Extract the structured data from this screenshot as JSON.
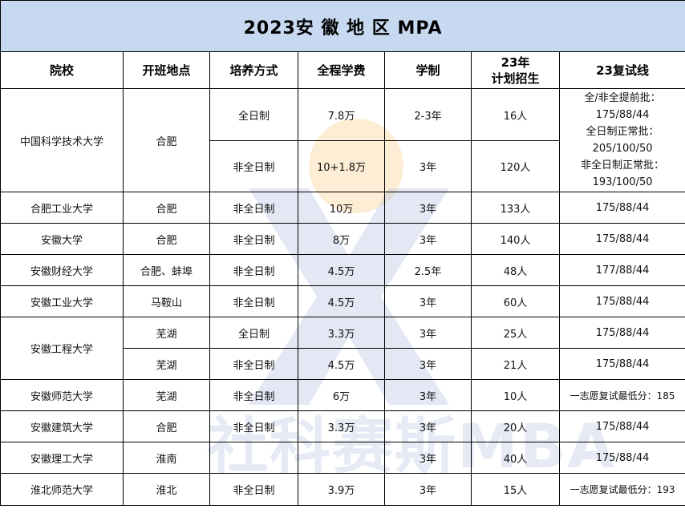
{
  "title": "2023安 徽 地 区 MPA",
  "headers": {
    "school": "院校",
    "location": "开班地点",
    "mode": "培养方式",
    "tuition": "全程学费",
    "duration": "学制",
    "plan_line1": "23年",
    "plan_line2": "计划招生",
    "score": "23复试线"
  },
  "ustc": {
    "school": "中国科学技术大学",
    "location": "合肥",
    "rows": [
      {
        "mode": "全日制",
        "tuition": "7.8万",
        "duration": "2-3年",
        "plan": "16人"
      },
      {
        "mode": "非全日制",
        "tuition": "10+1.8万",
        "duration": "3年",
        "plan": "120人"
      }
    ],
    "score_lines": [
      "全/非全提前批：",
      "175/88/44",
      "全日制正常批：",
      "205/100/50",
      "非全日制正常批：",
      "193/100/50"
    ]
  },
  "hfut": {
    "school": "合肥工业大学",
    "location": "合肥",
    "mode": "非全日制",
    "tuition": "10万",
    "duration": "3年",
    "plan": "133人",
    "score": "175/88/44"
  },
  "ahu": {
    "school": "安徽大学",
    "location": "合肥",
    "mode": "非全日制",
    "tuition": "8万",
    "duration": "3年",
    "plan": "140人",
    "score": "175/88/44"
  },
  "aufe": {
    "school": "安徽财经大学",
    "location": "合肥、蚌埠",
    "mode": "非全日制",
    "tuition": "4.5万",
    "duration": "2.5年",
    "plan": "48人",
    "score": "177/88/44"
  },
  "ahut": {
    "school": "安徽工业大学",
    "location": "马鞍山",
    "mode": "非全日制",
    "tuition": "4.5万",
    "duration": "3年",
    "plan": "60人",
    "score": "175/88/44"
  },
  "ahpu": {
    "school": "安徽工程大学",
    "rows": [
      {
        "location": "芜湖",
        "mode": "全日制",
        "tuition": "3.3万",
        "duration": "3年",
        "plan": "25人",
        "score": "175/88/44"
      },
      {
        "location": "芜湖",
        "mode": "非全日制",
        "tuition": "4.5万",
        "duration": "3年",
        "plan": "21人",
        "score": "175/88/44"
      }
    ]
  },
  "ahnu": {
    "school": "安徽师范大学",
    "location": "芜湖",
    "mode": "非全日制",
    "tuition": "6万",
    "duration": "3年",
    "plan": "10人",
    "score": "一志愿复试最低分：185"
  },
  "ahjzu": {
    "school": "安徽建筑大学",
    "location": "合肥",
    "mode": "非全日制",
    "tuition": "3.3万",
    "duration": "3年",
    "plan": "20人",
    "score": "175/88/44"
  },
  "aust": {
    "school": "安徽理工大学",
    "location": "淮南",
    "mode": "",
    "tuition": "",
    "duration": "3年",
    "plan": "40人",
    "score": "175/88/44"
  },
  "chnu": {
    "school": "淮北师范大学",
    "location": "淮北",
    "mode": "非全日制",
    "tuition": "3.9万",
    "duration": "3年",
    "plan": "15人",
    "score": "一志愿复试最低分：193"
  },
  "watermark": {
    "text": "社科赛斯MBA",
    "logo_letter": "X",
    "color_blue": "#aab9dc",
    "color_orange": "#fad7a0"
  },
  "colors": {
    "title_bg": "#c6d9f0",
    "border": "#000000"
  }
}
